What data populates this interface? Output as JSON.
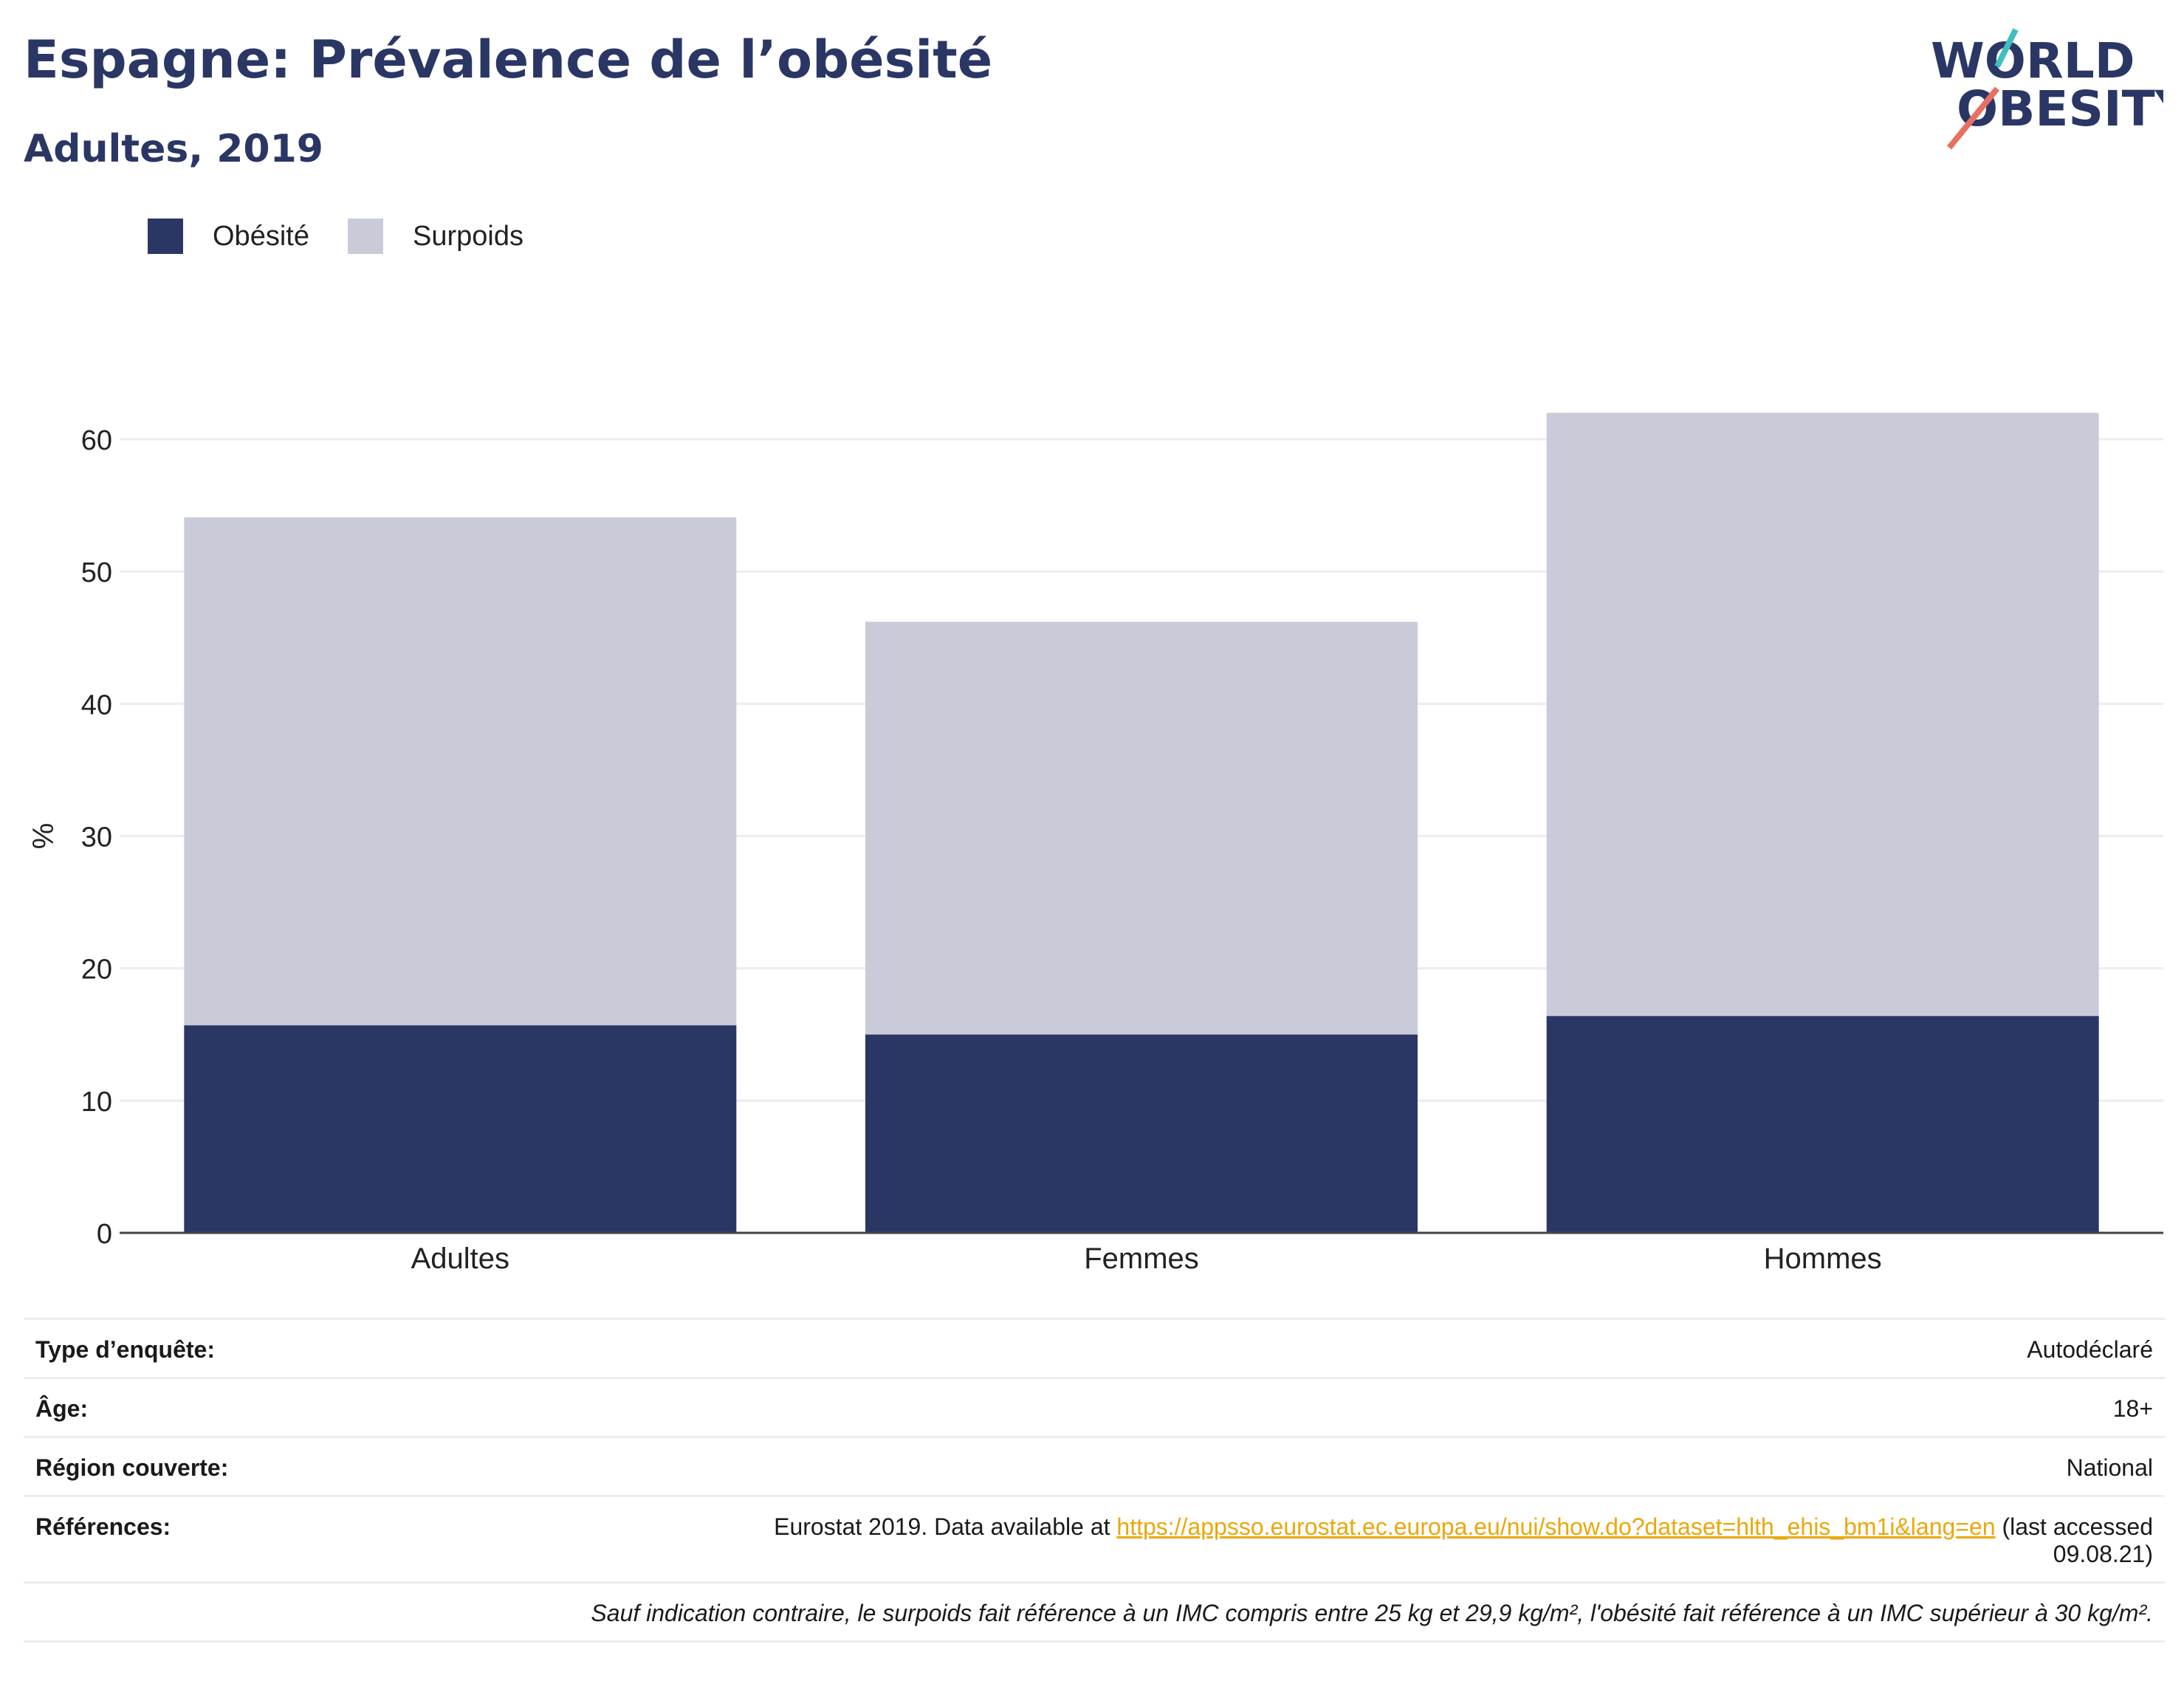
{
  "header": {
    "title": "Espagne: Prévalence de l’obésité",
    "subtitle": "Adultes, 2019"
  },
  "logo": {
    "line1": "WORLD",
    "line2": "OBESITY",
    "colors": {
      "text": "#2a3765",
      "accent_teal": "#3fbfbf",
      "accent_red": "#e8705f"
    }
  },
  "legend": [
    {
      "label": "Obésité",
      "color": "#2a3765"
    },
    {
      "label": "Surpoids",
      "color": "#c9ccd8"
    }
  ],
  "chart_data": {
    "type": "bar",
    "stacked": true,
    "categories": [
      "Adultes",
      "Femmes",
      "Hommes"
    ],
    "series": [
      {
        "name": "Obésité",
        "color": "#2a3765",
        "values": [
          15.7,
          15.0,
          16.4
        ]
      },
      {
        "name": "Surpoids",
        "color": "#c9ccd8",
        "values": [
          38.4,
          31.2,
          45.6
        ]
      }
    ],
    "ylabel": "%",
    "xlabel": "",
    "ylim": [
      0,
      65
    ],
    "yticks": [
      0,
      10,
      20,
      30,
      40,
      50,
      60
    ],
    "grid": true,
    "legend_position": "top-left"
  },
  "meta": {
    "rows": [
      {
        "key": "Type d’enquête:",
        "value": "Autodéclaré"
      },
      {
        "key": "Âge:",
        "value": "18+"
      },
      {
        "key": "Région couverte:",
        "value": "National"
      }
    ],
    "references": {
      "key": "Références:",
      "prefix": "Eurostat 2019. Data available at ",
      "link": "https://appsso.eurostat.ec.europa.eu/nui/show.do?dataset=hlth_ehis_bm1i&lang=en",
      "suffix": " (last accessed",
      "suffix2": "09.08.21)"
    },
    "note": "Sauf indication contraire, le surpoids fait référence à un IMC compris entre 25 kg et 29,9 kg/m², l'obésité fait référence à un IMC supérieur à 30 kg/m²."
  }
}
